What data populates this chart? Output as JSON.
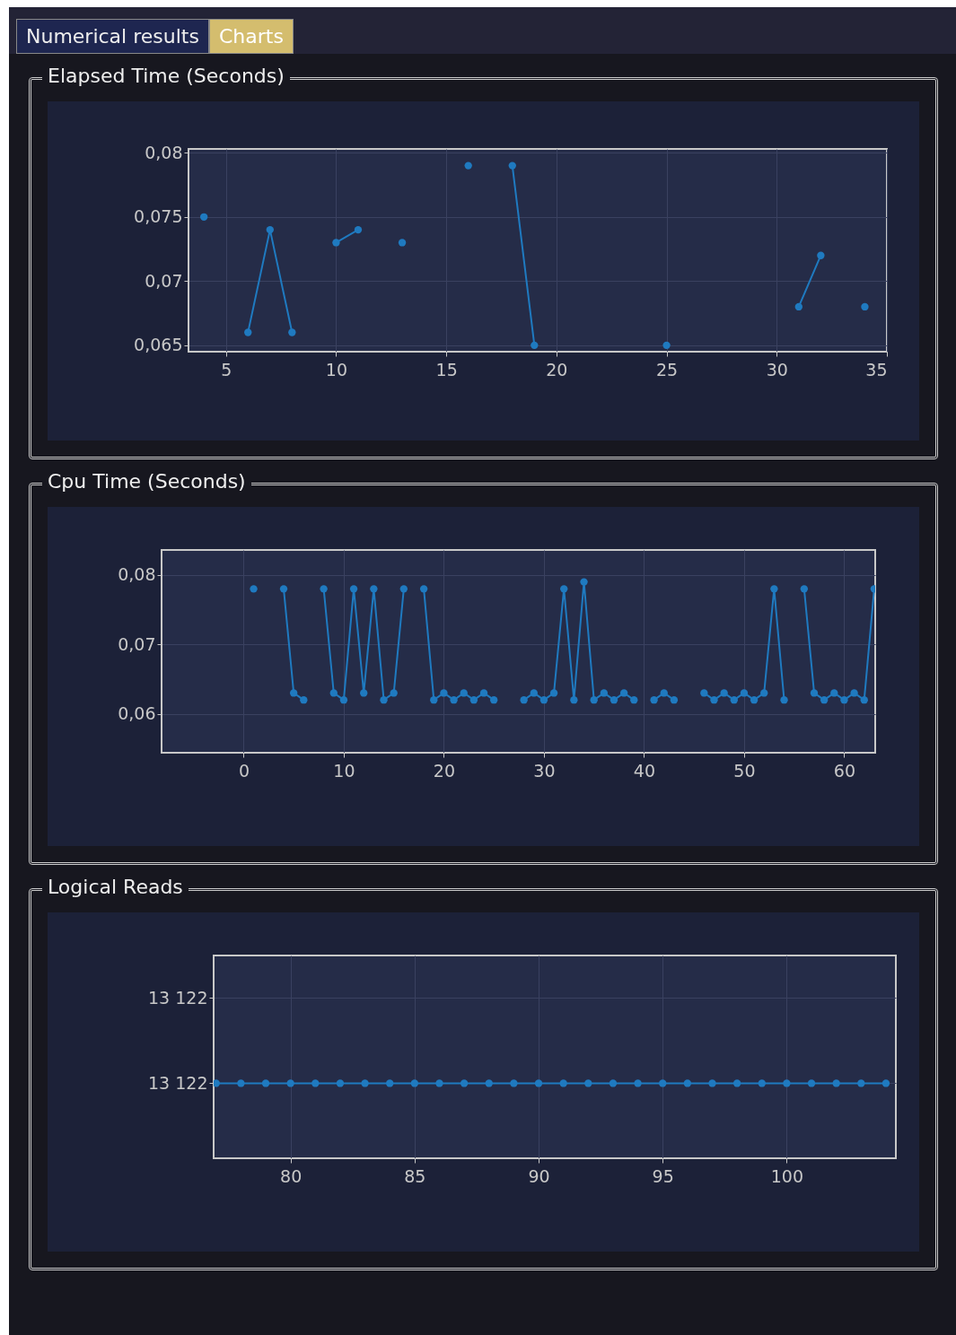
{
  "chart_data": [
    {
      "type": "line",
      "title": "Elapsed Time (Seconds)",
      "annotations": [
        "Numerical results",
        "Charts"
      ],
      "x": [
        4,
        5,
        6,
        7,
        8,
        9,
        10,
        11,
        12,
        13,
        14,
        15,
        16,
        17,
        18,
        19,
        20,
        21,
        22,
        23,
        24,
        25,
        26,
        27,
        28,
        29,
        30,
        31,
        32,
        33,
        34
      ],
      "series": [
        {
          "color": "#1f7ac0",
          "values": [
            0.075,
            null,
            0.066,
            0.074,
            0.066,
            null,
            0.073,
            0.074,
            null,
            0.073,
            null,
            null,
            0.079,
            null,
            0.079,
            0.065,
            null,
            null,
            null,
            null,
            null,
            0.065,
            null,
            null,
            null,
            null,
            null,
            0.068,
            0.072,
            null,
            0.068
          ]
        }
      ],
      "xlim": [
        3.3,
        35
      ],
      "xticks": [
        5,
        10,
        15,
        20,
        25,
        30,
        35
      ],
      "ylim": [
        0.0645,
        0.0803
      ],
      "yticks": [
        {
          "value": 0.065,
          "label": "0,065"
        },
        {
          "value": 0.07,
          "label": "0,07"
        },
        {
          "value": 0.075,
          "label": "0,075"
        },
        {
          "value": 0.08,
          "label": "0,08"
        }
      ],
      "grid": true,
      "marker": "circle",
      "line_style": "solid"
    },
    {
      "type": "line",
      "title": "Cpu Time (Seconds)",
      "x": [
        1,
        2,
        3,
        4,
        5,
        6,
        7,
        8,
        9,
        10,
        11,
        12,
        13,
        14,
        15,
        16,
        17,
        18,
        19,
        20,
        21,
        22,
        23,
        24,
        25,
        26,
        27,
        28,
        29,
        30,
        31,
        32,
        33,
        34,
        35,
        36,
        37,
        38,
        39,
        40,
        41,
        42,
        43,
        44,
        45,
        46,
        47,
        48,
        49,
        50,
        51,
        52,
        53,
        54,
        55,
        56,
        57,
        58,
        59,
        60,
        61,
        62,
        63
      ],
      "series": [
        {
          "color": "#1f7ac0",
          "values": [
            0.078,
            null,
            null,
            0.078,
            0.063,
            0.062,
            null,
            0.078,
            0.063,
            0.062,
            0.078,
            0.063,
            0.078,
            0.062,
            0.063,
            0.078,
            null,
            0.078,
            0.062,
            0.063,
            0.062,
            0.063,
            0.062,
            0.063,
            0.062,
            null,
            null,
            0.062,
            0.063,
            0.062,
            0.063,
            0.078,
            0.062,
            0.079,
            0.062,
            0.063,
            0.062,
            0.063,
            0.062,
            null,
            0.062,
            0.063,
            0.062,
            null,
            null,
            0.063,
            0.062,
            0.063,
            0.062,
            0.063,
            0.062,
            0.063,
            0.078,
            0.062,
            null,
            0.078,
            0.063,
            0.062,
            0.063,
            0.062,
            0.063,
            0.062,
            0.078
          ]
        }
      ],
      "xlim": [
        -8.2,
        63.1
      ],
      "xticks": [
        0,
        10,
        20,
        30,
        40,
        50,
        60
      ],
      "ylim": [
        0.0544,
        0.0836
      ],
      "yticks": [
        {
          "value": 0.06,
          "label": "0,06"
        },
        {
          "value": 0.07,
          "label": "0,07"
        },
        {
          "value": 0.08,
          "label": "0,08"
        }
      ],
      "grid": true,
      "marker": "circle",
      "line_style": "solid"
    },
    {
      "type": "line",
      "title": "Logical Reads",
      "x": [
        77,
        78,
        79,
        80,
        81,
        82,
        83,
        84,
        85,
        86,
        87,
        88,
        89,
        90,
        91,
        92,
        93,
        94,
        95,
        96,
        97,
        98,
        99,
        100,
        101,
        102,
        103,
        104
      ],
      "series": [
        {
          "color": "#1f7ac0",
          "values": [
            13122,
            13122,
            13122,
            13122,
            13122,
            13122,
            13122,
            13122,
            13122,
            13122,
            13122,
            13122,
            13122,
            13122,
            13122,
            13122,
            13122,
            13122,
            13122,
            13122,
            13122,
            13122,
            13122,
            13122,
            13122,
            13122,
            13122,
            13122
          ]
        }
      ],
      "xlim": [
        76.9,
        104.4
      ],
      "xticks": [
        80,
        85,
        90,
        95,
        100
      ],
      "ylim": [
        13121.56,
        13122.75
      ],
      "yticks": [
        {
          "value": 13122,
          "label": "13 122"
        },
        {
          "value": 13122.5,
          "label": "13 122"
        }
      ],
      "grid": true,
      "marker": "circle",
      "line_style": "solid"
    }
  ]
}
